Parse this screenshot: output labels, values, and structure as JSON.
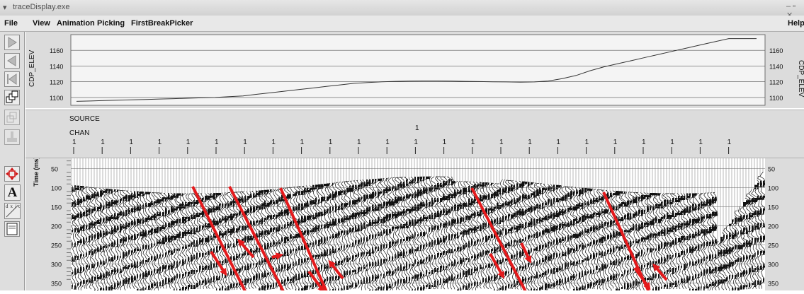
{
  "window": {
    "title": "traceDisplay.exe",
    "controls": "– ▫ ✕"
  },
  "menu": {
    "file": "File",
    "view": "View",
    "animation": "Animation",
    "picking": "Picking",
    "first_break_picker": "FirstBreakPicker",
    "help": "Help"
  },
  "toolbar": {
    "icons": [
      "play-icon",
      "step-back-icon",
      "rewind-icon",
      "windows-icon",
      "layers-icon",
      "stamp-icon",
      "move-icon",
      "text-tool-icon",
      "derivative-icon",
      "page-icon"
    ],
    "text_tool_label": "A",
    "derivative_label": "dx/dt"
  },
  "elevation_panel": {
    "axis_label": "CDP_ELEV",
    "ticks": [
      "1160",
      "1140",
      "1120",
      "1100"
    ],
    "x": [
      0,
      5,
      10,
      15,
      20,
      25,
      30,
      35,
      40,
      45,
      50,
      55,
      60,
      65,
      70,
      75,
      80,
      85,
      90,
      95,
      100,
      105,
      110,
      115,
      120,
      125,
      130,
      135,
      140,
      145,
      150,
      155,
      160,
      165,
      170,
      175,
      180,
      185,
      190,
      195,
      200,
      205,
      210,
      215,
      220,
      225,
      230,
      235,
      240,
      245
    ],
    "y": [
      1095,
      1095.5,
      1096,
      1096.5,
      1097,
      1097.5,
      1098,
      1098.5,
      1099,
      1099.5,
      1100,
      1101,
      1102,
      1104,
      1106,
      1108,
      1110,
      1112,
      1114,
      1116,
      1118,
      1119,
      1120,
      1120.5,
      1120.8,
      1121,
      1121,
      1120.8,
      1120.5,
      1120.2,
      1120,
      1119.8,
      1119.5,
      1119.8,
      1121,
      1124,
      1128,
      1134,
      1139,
      1143,
      1147,
      1151,
      1155,
      1159,
      1163,
      1167,
      1171,
      1175,
      1175,
      1175
    ]
  },
  "header_panel": {
    "source_label": "SOURCE",
    "chan_label": "CHAN",
    "source_value": "1",
    "chan_value": "1"
  },
  "seismic_panel": {
    "axis_label": "Time (ms)",
    "time_ticks": [
      "50",
      "100",
      "150",
      "200",
      "250",
      "300",
      "350"
    ],
    "arrow_color": "#e41a1c"
  }
}
